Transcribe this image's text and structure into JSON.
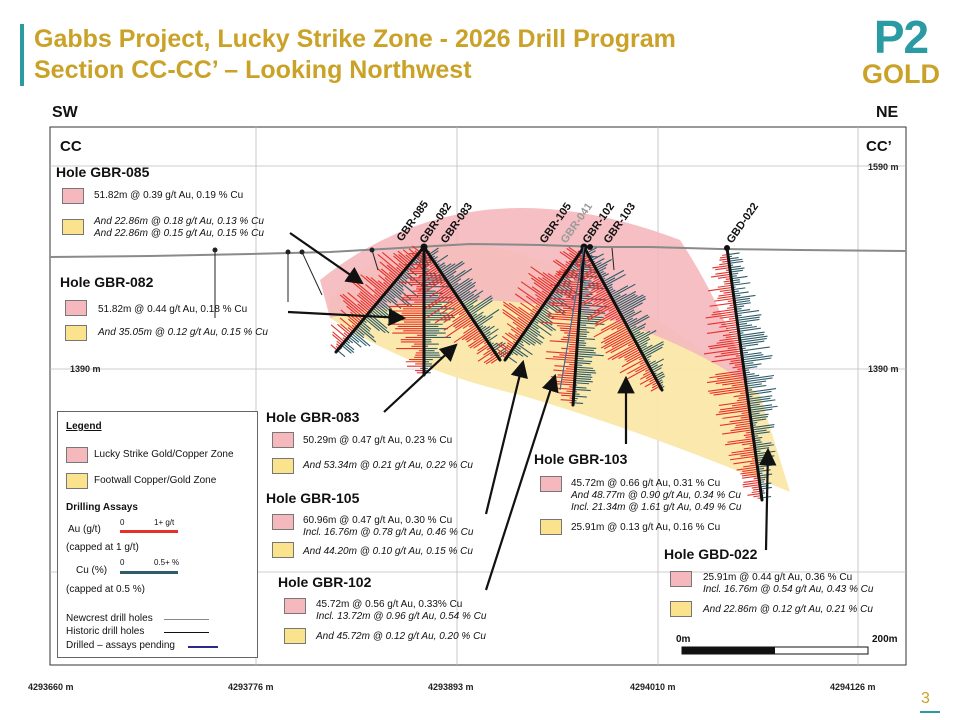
{
  "header": {
    "title_line1": "Gabbs Project, Lucky Strike Zone - 2026 Drill Program",
    "title_line2": "Section CC-CC’ – Looking Northwest",
    "logo_top": "P2",
    "logo_bottom": "GOLD",
    "accent_color": "#2a9aa3",
    "gold_color": "#c9a227"
  },
  "section": {
    "left_dir": "SW",
    "right_dir": "NE",
    "left_label": "CC",
    "right_label": "CC’",
    "elev_top": "1590 m",
    "elev_mid": "1390 m",
    "eastings": [
      "4293660 m",
      "4293776 m",
      "4293893 m",
      "4294010 m",
      "4294126 m"
    ],
    "scale_start": "0m",
    "scale_end": "200m"
  },
  "hole_labels": [
    "GBR-085",
    "GBR-082",
    "GBR-083",
    "GBR-105",
    "GBR-041",
    "GBR-102",
    "GBR-103",
    "GBD-022"
  ],
  "holes": {
    "h085": {
      "title": "Hole GBR-085",
      "red_line": "51.82m @  0.39 g/t Au, 0.19 % Cu",
      "yel_line1": "And 22.86m @ 0.18 g/t Au, 0.13 % Cu",
      "yel_line2": "And 22.86m @  0.15 g/t Au, 0.15 % Cu"
    },
    "h082": {
      "title": "Hole GBR-082",
      "red_line": "51.82m @  0.44 g/t Au, 0.18 % Cu",
      "yel_line1": "And 35.05m @  0.12 g/t Au, 0.15 % Cu"
    },
    "h083": {
      "title": "Hole GBR-083",
      "red_line": "50.29m @  0.47 g/t Au, 0.23 % Cu",
      "yel_line1": "And 53.34m @  0.21 g/t Au, 0.22 % Cu"
    },
    "h105": {
      "title": "Hole GBR-105",
      "red_line": "60.96m @  0.47 g/t Au, 0.30 % Cu",
      "red_line2": "Incl. 16.76m @ 0.78 g/t Au, 0.46 % Cu",
      "yel_line1": "And 44.20m @  0.10 g/t Au, 0.15 % Cu"
    },
    "h102": {
      "title": "Hole GBR-102",
      "red_line": "45.72m @  0.56 g/t Au, 0.33% Cu",
      "red_line2": "Incl. 13.72m @ 0.96 g/t Au, 0.54 % Cu",
      "yel_line1": "And 45.72m @  0.12 g/t Au, 0.20 % Cu"
    },
    "h103": {
      "title": "Hole GBR-103",
      "red_line": "45.72m @  0.66 g/t Au, 0.31 % Cu",
      "red_line2": "And 48.77m @ 0.90 g/t Au, 0.34 % Cu",
      "red_line3": "Incl. 21.34m @  1.61 g/t Au, 0.49 % Cu",
      "yel_line1": "25.91m @ 0.13 g/t Au, 0.16 % Cu"
    },
    "h022": {
      "title": "Hole GBD-022",
      "red_line": "25.91m @  0.44 g/t Au, 0.36 % Cu",
      "red_line2": "Incl. 16.76m @ 0.54 g/t Au, 0.43 % Cu",
      "yel_line1": "And 22.86m @  0.12 g/t Au, 0.21 % Cu"
    }
  },
  "legend": {
    "title": "Legend",
    "zone_gold": "Lucky Strike Gold/Copper Zone",
    "zone_footwall": "Footwall Copper/Gold Zone",
    "assays_title": "Drilling Assays",
    "au_label": "Au (g/t)",
    "au_min": "0",
    "au_max": "1+ g/t",
    "au_cap": "(capped at 1 g/t)",
    "cu_label": "Cu (%)",
    "cu_min": "0",
    "cu_max": "0.5+ %",
    "cu_cap": "(capped at 0.5 %)",
    "newcrest": "Newcrest drill holes",
    "historic": "Historic drill holes",
    "pending": "Drilled – assays pending",
    "au_color": "#e8302a",
    "cu_color": "#2e5c68"
  },
  "page_number": "3"
}
